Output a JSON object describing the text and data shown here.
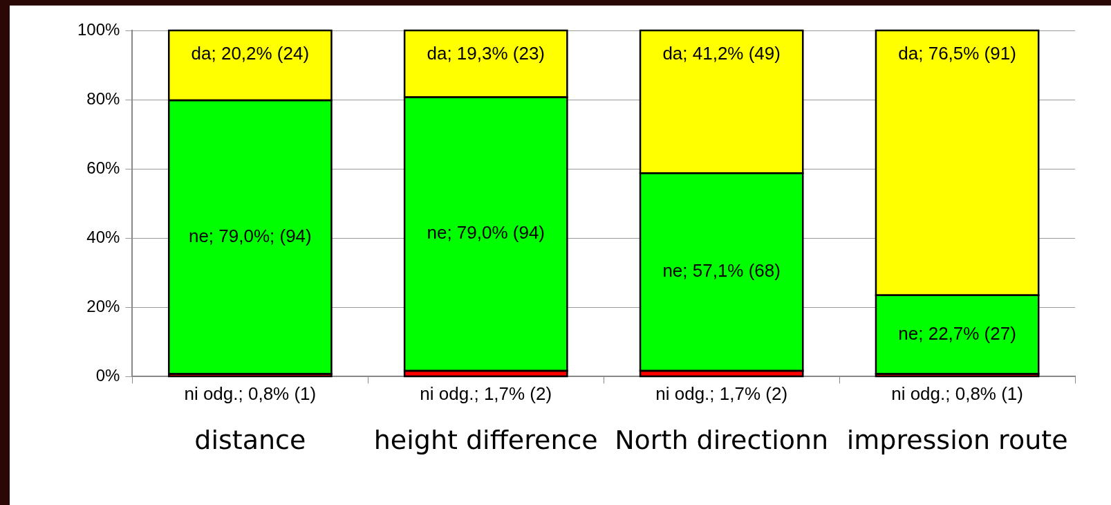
{
  "chart_data": {
    "type": "bar",
    "stacked": true,
    "categories": [
      "distance",
      "height difference",
      "North directionn",
      "impression route"
    ],
    "series": [
      {
        "color": "#ff0000",
        "values": [
          0.8,
          1.7,
          1.7,
          0.8
        ],
        "value_labels": [
          "ni odg.; 0,8% (1)",
          "ni odg.; 1,7% (2)",
          "ni odg.; 1,7% (2)",
          "ni odg.; 0,8% (1)"
        ]
      },
      {
        "color": "#00ff00",
        "values": [
          79.0,
          79.0,
          57.1,
          22.7
        ],
        "value_labels": [
          "ne; 79,0%; (94)",
          "ne; 79,0% (94)",
          "ne; 57,1% (68)",
          "ne; 22,7% (27)"
        ]
      },
      {
        "color": "#ffff00",
        "values": [
          20.2,
          19.3,
          41.2,
          76.5
        ],
        "value_labels": [
          "da; 20,2% (24)",
          "da; 19,3% (23)",
          "da; 41,2% (49)",
          "da; 76,5% (91)"
        ]
      }
    ],
    "ylim": [
      0,
      100
    ],
    "yticks": [
      {
        "value": 0,
        "label": "0%"
      },
      {
        "value": 20,
        "label": "20%"
      },
      {
        "value": 40,
        "label": "40%"
      },
      {
        "value": 60,
        "label": "60%"
      },
      {
        "value": 80,
        "label": "80%"
      },
      {
        "value": 100,
        "label": "100%"
      }
    ],
    "grid": "y",
    "legend": false
  }
}
